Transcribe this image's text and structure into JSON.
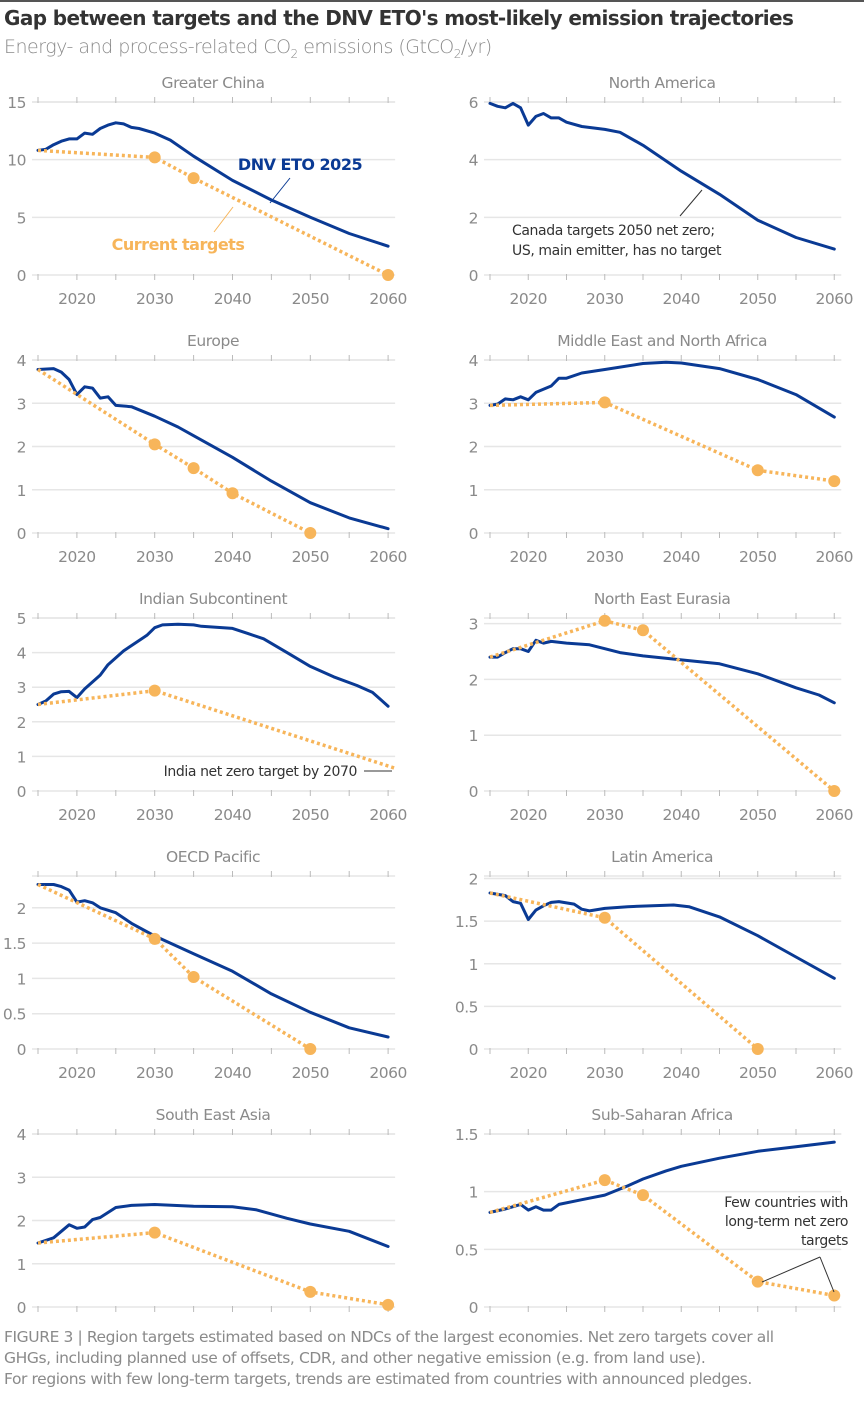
{
  "header": {
    "title": "Gap between targets and the DNV ETO's most-likely emission trajectories",
    "subtitle_pre": "Energy- and process-related CO",
    "subtitle_sub1": "2",
    "subtitle_mid": " emissions (GtCO",
    "subtitle_sub2": "2",
    "subtitle_post": "/yr)"
  },
  "colors": {
    "eto": "#0a3a94",
    "targets": "#f7b55a",
    "grid": "#e6e6e6",
    "axis_text": "#8a8a8a",
    "annotation": "#333333"
  },
  "legend": {
    "eto_label": "DNV ETO 2025",
    "targets_label": "Current targets"
  },
  "caption": {
    "line1": "FIGURE 3 | Region targets estimated based on NDCs of the largest economies. Net zero targets cover all",
    "line2": "GHGs, including planned use of offsets, CDR, and other negative emission (e.g. from land use).",
    "line3": "For regions with few long-term targets, trends are estimated from countries with announced pledges."
  },
  "chart_data": [
    {
      "type": "line",
      "title": "Greater China",
      "xlim": [
        2015,
        2060
      ],
      "xticks": [
        2020,
        2030,
        2040,
        2050,
        2060
      ],
      "ylim": [
        0,
        15
      ],
      "yticks": [
        "0",
        "5",
        "10",
        "15"
      ],
      "series": [
        {
          "name": "DNV ETO 2025",
          "x": [
            2015,
            2016,
            2017,
            2018,
            2019,
            2020,
            2021,
            2022,
            2023,
            2024,
            2025,
            2026,
            2027,
            2028,
            2030,
            2032,
            2035,
            2040,
            2045,
            2050,
            2055,
            2060
          ],
          "y": [
            10.8,
            10.9,
            11.3,
            11.6,
            11.8,
            11.8,
            12.3,
            12.2,
            12.7,
            13.0,
            13.2,
            13.1,
            12.8,
            12.7,
            12.3,
            11.7,
            10.3,
            8.2,
            6.5,
            5.0,
            3.6,
            2.5
          ]
        },
        {
          "name": "Current targets",
          "x": [
            2015,
            2030,
            2035,
            2060
          ],
          "y": [
            10.8,
            10.2,
            8.4,
            0
          ],
          "markers": [
            2030,
            2035,
            2060
          ]
        }
      ]
    },
    {
      "type": "line",
      "title": "North America",
      "xlim": [
        2015,
        2060
      ],
      "xticks": [
        2020,
        2030,
        2040,
        2050,
        2060
      ],
      "ylim": [
        0,
        6
      ],
      "yticks": [
        "0",
        "2",
        "4",
        "6"
      ],
      "annotation": [
        "Canada targets 2050 net zero;",
        "US, main emitter, has no target"
      ],
      "series": [
        {
          "name": "DNV ETO 2025",
          "x": [
            2015,
            2016,
            2017,
            2018,
            2019,
            2020,
            2021,
            2022,
            2023,
            2024,
            2025,
            2027,
            2030,
            2032,
            2035,
            2040,
            2045,
            2050,
            2055,
            2060
          ],
          "y": [
            5.95,
            5.85,
            5.8,
            5.95,
            5.8,
            5.2,
            5.5,
            5.6,
            5.45,
            5.45,
            5.3,
            5.15,
            5.05,
            4.95,
            4.5,
            3.6,
            2.8,
            1.9,
            1.3,
            0.9
          ]
        }
      ]
    },
    {
      "type": "line",
      "title": "Europe",
      "xlim": [
        2015,
        2060
      ],
      "xticks": [
        2020,
        2030,
        2040,
        2050,
        2060
      ],
      "ylim": [
        0,
        4
      ],
      "yticks": [
        "0",
        "1",
        "2",
        "3",
        "4"
      ],
      "series": [
        {
          "name": "DNV ETO 2025",
          "x": [
            2015,
            2017,
            2018,
            2019,
            2020,
            2021,
            2022,
            2023,
            2024,
            2025,
            2027,
            2030,
            2033,
            2035,
            2040,
            2045,
            2050,
            2055,
            2060
          ],
          "y": [
            3.78,
            3.8,
            3.72,
            3.55,
            3.2,
            3.38,
            3.35,
            3.12,
            3.15,
            2.95,
            2.92,
            2.7,
            2.45,
            2.25,
            1.75,
            1.2,
            0.7,
            0.35,
            0.1
          ]
        },
        {
          "name": "Current targets",
          "x": [
            2015,
            2030,
            2035,
            2040,
            2050
          ],
          "y": [
            3.78,
            2.05,
            1.5,
            0.92,
            0
          ],
          "markers": [
            2030,
            2035,
            2040,
            2050
          ]
        }
      ]
    },
    {
      "type": "line",
      "title": "Middle East and North Africa",
      "xlim": [
        2015,
        2060
      ],
      "xticks": [
        2020,
        2030,
        2040,
        2050,
        2060
      ],
      "ylim": [
        0,
        4
      ],
      "yticks": [
        "0",
        "1",
        "2",
        "3",
        "4"
      ],
      "series": [
        {
          "name": "DNV ETO 2025",
          "x": [
            2015,
            2016,
            2017,
            2018,
            2019,
            2020,
            2021,
            2023,
            2024,
            2025,
            2027,
            2030,
            2035,
            2038,
            2040,
            2045,
            2050,
            2055,
            2060
          ],
          "y": [
            2.95,
            2.98,
            3.1,
            3.08,
            3.15,
            3.08,
            3.25,
            3.4,
            3.58,
            3.58,
            3.7,
            3.78,
            3.92,
            3.95,
            3.93,
            3.8,
            3.55,
            3.2,
            2.68
          ]
        },
        {
          "name": "Current targets",
          "x": [
            2015,
            2030,
            2050,
            2060
          ],
          "y": [
            2.95,
            3.02,
            1.45,
            1.2
          ],
          "markers": [
            2030,
            2050,
            2060
          ]
        }
      ]
    },
    {
      "type": "line",
      "title": "Indian Subcontinent",
      "xlim": [
        2015,
        2060
      ],
      "xticks": [
        2020,
        2030,
        2040,
        2050,
        2060
      ],
      "ylim": [
        0,
        5
      ],
      "yticks": [
        "0",
        "1",
        "2",
        "3",
        "4",
        "5"
      ],
      "annotation": [
        "India net zero target by 2070"
      ],
      "series": [
        {
          "name": "DNV ETO 2025",
          "x": [
            2015,
            2016,
            2017,
            2018,
            2019,
            2020,
            2021,
            2023,
            2024,
            2026,
            2028,
            2029,
            2030,
            2031,
            2033,
            2035,
            2036,
            2040,
            2042,
            2044,
            2047,
            2050,
            2053,
            2056,
            2058,
            2060
          ],
          "y": [
            2.5,
            2.6,
            2.8,
            2.87,
            2.88,
            2.7,
            2.95,
            3.35,
            3.65,
            4.05,
            4.35,
            4.5,
            4.72,
            4.8,
            4.82,
            4.8,
            4.76,
            4.7,
            4.55,
            4.4,
            4.0,
            3.6,
            3.3,
            3.05,
            2.85,
            2.45
          ]
        },
        {
          "name": "Current targets",
          "x": [
            2015,
            2030,
            2061
          ],
          "y": [
            2.5,
            2.9,
            0.65
          ],
          "markers": [
            2030
          ]
        }
      ]
    },
    {
      "type": "line",
      "title": "North East Eurasia",
      "xlim": [
        2015,
        2060
      ],
      "xticks": [
        2020,
        2030,
        2040,
        2050,
        2060
      ],
      "ylim": [
        0,
        3.1
      ],
      "yticks": [
        "0",
        "1",
        "2",
        "3"
      ],
      "series": [
        {
          "name": "DNV ETO 2025",
          "x": [
            2015,
            2016,
            2017,
            2018,
            2019,
            2020,
            2021,
            2022,
            2023,
            2025,
            2028,
            2030,
            2032,
            2035,
            2040,
            2045,
            2050,
            2055,
            2058,
            2060
          ],
          "y": [
            2.4,
            2.4,
            2.48,
            2.55,
            2.55,
            2.5,
            2.7,
            2.65,
            2.68,
            2.65,
            2.62,
            2.55,
            2.48,
            2.42,
            2.35,
            2.28,
            2.1,
            1.85,
            1.72,
            1.58
          ]
        },
        {
          "name": "Current targets",
          "x": [
            2015,
            2030,
            2035,
            2060
          ],
          "y": [
            2.4,
            3.05,
            2.88,
            0
          ],
          "markers": [
            2030,
            2035,
            2060
          ]
        }
      ]
    },
    {
      "type": "line",
      "title": "OECD Pacific",
      "xlim": [
        2015,
        2060
      ],
      "xticks": [
        2020,
        2030,
        2040,
        2050,
        2060
      ],
      "ylim": [
        0,
        2.45
      ],
      "yticks": [
        "0",
        "0.5",
        "1",
        "1.5",
        "2"
      ],
      "series": [
        {
          "name": "DNV ETO 2025",
          "x": [
            2015,
            2017,
            2018,
            2019,
            2020,
            2021,
            2022,
            2023,
            2025,
            2027,
            2030,
            2035,
            2040,
            2045,
            2050,
            2055,
            2060
          ],
          "y": [
            2.33,
            2.33,
            2.3,
            2.25,
            2.08,
            2.1,
            2.07,
            2.0,
            1.93,
            1.78,
            1.6,
            1.35,
            1.1,
            0.78,
            0.52,
            0.3,
            0.17
          ]
        },
        {
          "name": "Current targets",
          "x": [
            2015,
            2030,
            2035,
            2050
          ],
          "y": [
            2.33,
            1.56,
            1.02,
            0
          ],
          "markers": [
            2030,
            2035,
            2050
          ]
        }
      ]
    },
    {
      "type": "line",
      "title": "Latin America",
      "xlim": [
        2015,
        2060
      ],
      "xticks": [
        2020,
        2030,
        2040,
        2050,
        2060
      ],
      "ylim": [
        0,
        2.03
      ],
      "yticks": [
        "0",
        "0.5",
        "1",
        "1.5",
        "2"
      ],
      "series": [
        {
          "name": "DNV ETO 2025",
          "x": [
            2015,
            2017,
            2018,
            2019,
            2020,
            2021,
            2022,
            2023,
            2024,
            2026,
            2027,
            2028,
            2030,
            2033,
            2039,
            2041,
            2045,
            2050,
            2055,
            2060
          ],
          "y": [
            1.83,
            1.8,
            1.73,
            1.71,
            1.52,
            1.63,
            1.68,
            1.72,
            1.73,
            1.7,
            1.64,
            1.62,
            1.65,
            1.67,
            1.69,
            1.67,
            1.55,
            1.33,
            1.08,
            0.83
          ]
        },
        {
          "name": "Current targets",
          "x": [
            2015,
            2030,
            2050
          ],
          "y": [
            1.83,
            1.54,
            0
          ],
          "markers": [
            2030,
            2050
          ]
        }
      ]
    },
    {
      "type": "line",
      "title": "South East Asia",
      "xlim": [
        2015,
        2060
      ],
      "xticks": [
        2020,
        2030,
        2040,
        2050,
        2060
      ],
      "ylim": [
        0,
        4
      ],
      "yticks": [
        "0",
        "1",
        "2",
        "3",
        "4"
      ],
      "series": [
        {
          "name": "DNV ETO 2025",
          "x": [
            2015,
            2017,
            2019,
            2020,
            2021,
            2022,
            2023,
            2025,
            2027,
            2030,
            2035,
            2040,
            2043,
            2047,
            2050,
            2055,
            2060
          ],
          "y": [
            1.48,
            1.6,
            1.9,
            1.82,
            1.85,
            2.02,
            2.07,
            2.3,
            2.35,
            2.37,
            2.33,
            2.32,
            2.25,
            2.05,
            1.92,
            1.75,
            1.4
          ]
        },
        {
          "name": "Current targets",
          "x": [
            2015,
            2030,
            2050,
            2060
          ],
          "y": [
            1.48,
            1.72,
            0.35,
            0.05
          ],
          "markers": [
            2030,
            2050,
            2060
          ]
        }
      ]
    },
    {
      "type": "line",
      "title": "Sub-Saharan Africa",
      "xlim": [
        2015,
        2060
      ],
      "xticks": [
        2020,
        2030,
        2040,
        2050,
        2060
      ],
      "ylim": [
        0,
        1.5
      ],
      "yticks": [
        "0",
        "0.5",
        "1",
        "1.5"
      ],
      "annotation": [
        "Few countries with",
        "long-term net zero",
        "targets"
      ],
      "series": [
        {
          "name": "DNV ETO 2025",
          "x": [
            2015,
            2017,
            2019,
            2020,
            2021,
            2022,
            2023,
            2024,
            2027,
            2030,
            2033,
            2035,
            2038,
            2040,
            2045,
            2050,
            2055,
            2060
          ],
          "y": [
            0.82,
            0.85,
            0.89,
            0.84,
            0.87,
            0.84,
            0.84,
            0.89,
            0.93,
            0.97,
            1.05,
            1.11,
            1.18,
            1.22,
            1.29,
            1.35,
            1.39,
            1.43
          ]
        },
        {
          "name": "Current targets",
          "x": [
            2015,
            2030,
            2035,
            2050,
            2060
          ],
          "y": [
            0.82,
            1.1,
            0.97,
            0.22,
            0.1
          ],
          "markers": [
            2030,
            2035,
            2050,
            2060
          ]
        }
      ]
    }
  ]
}
